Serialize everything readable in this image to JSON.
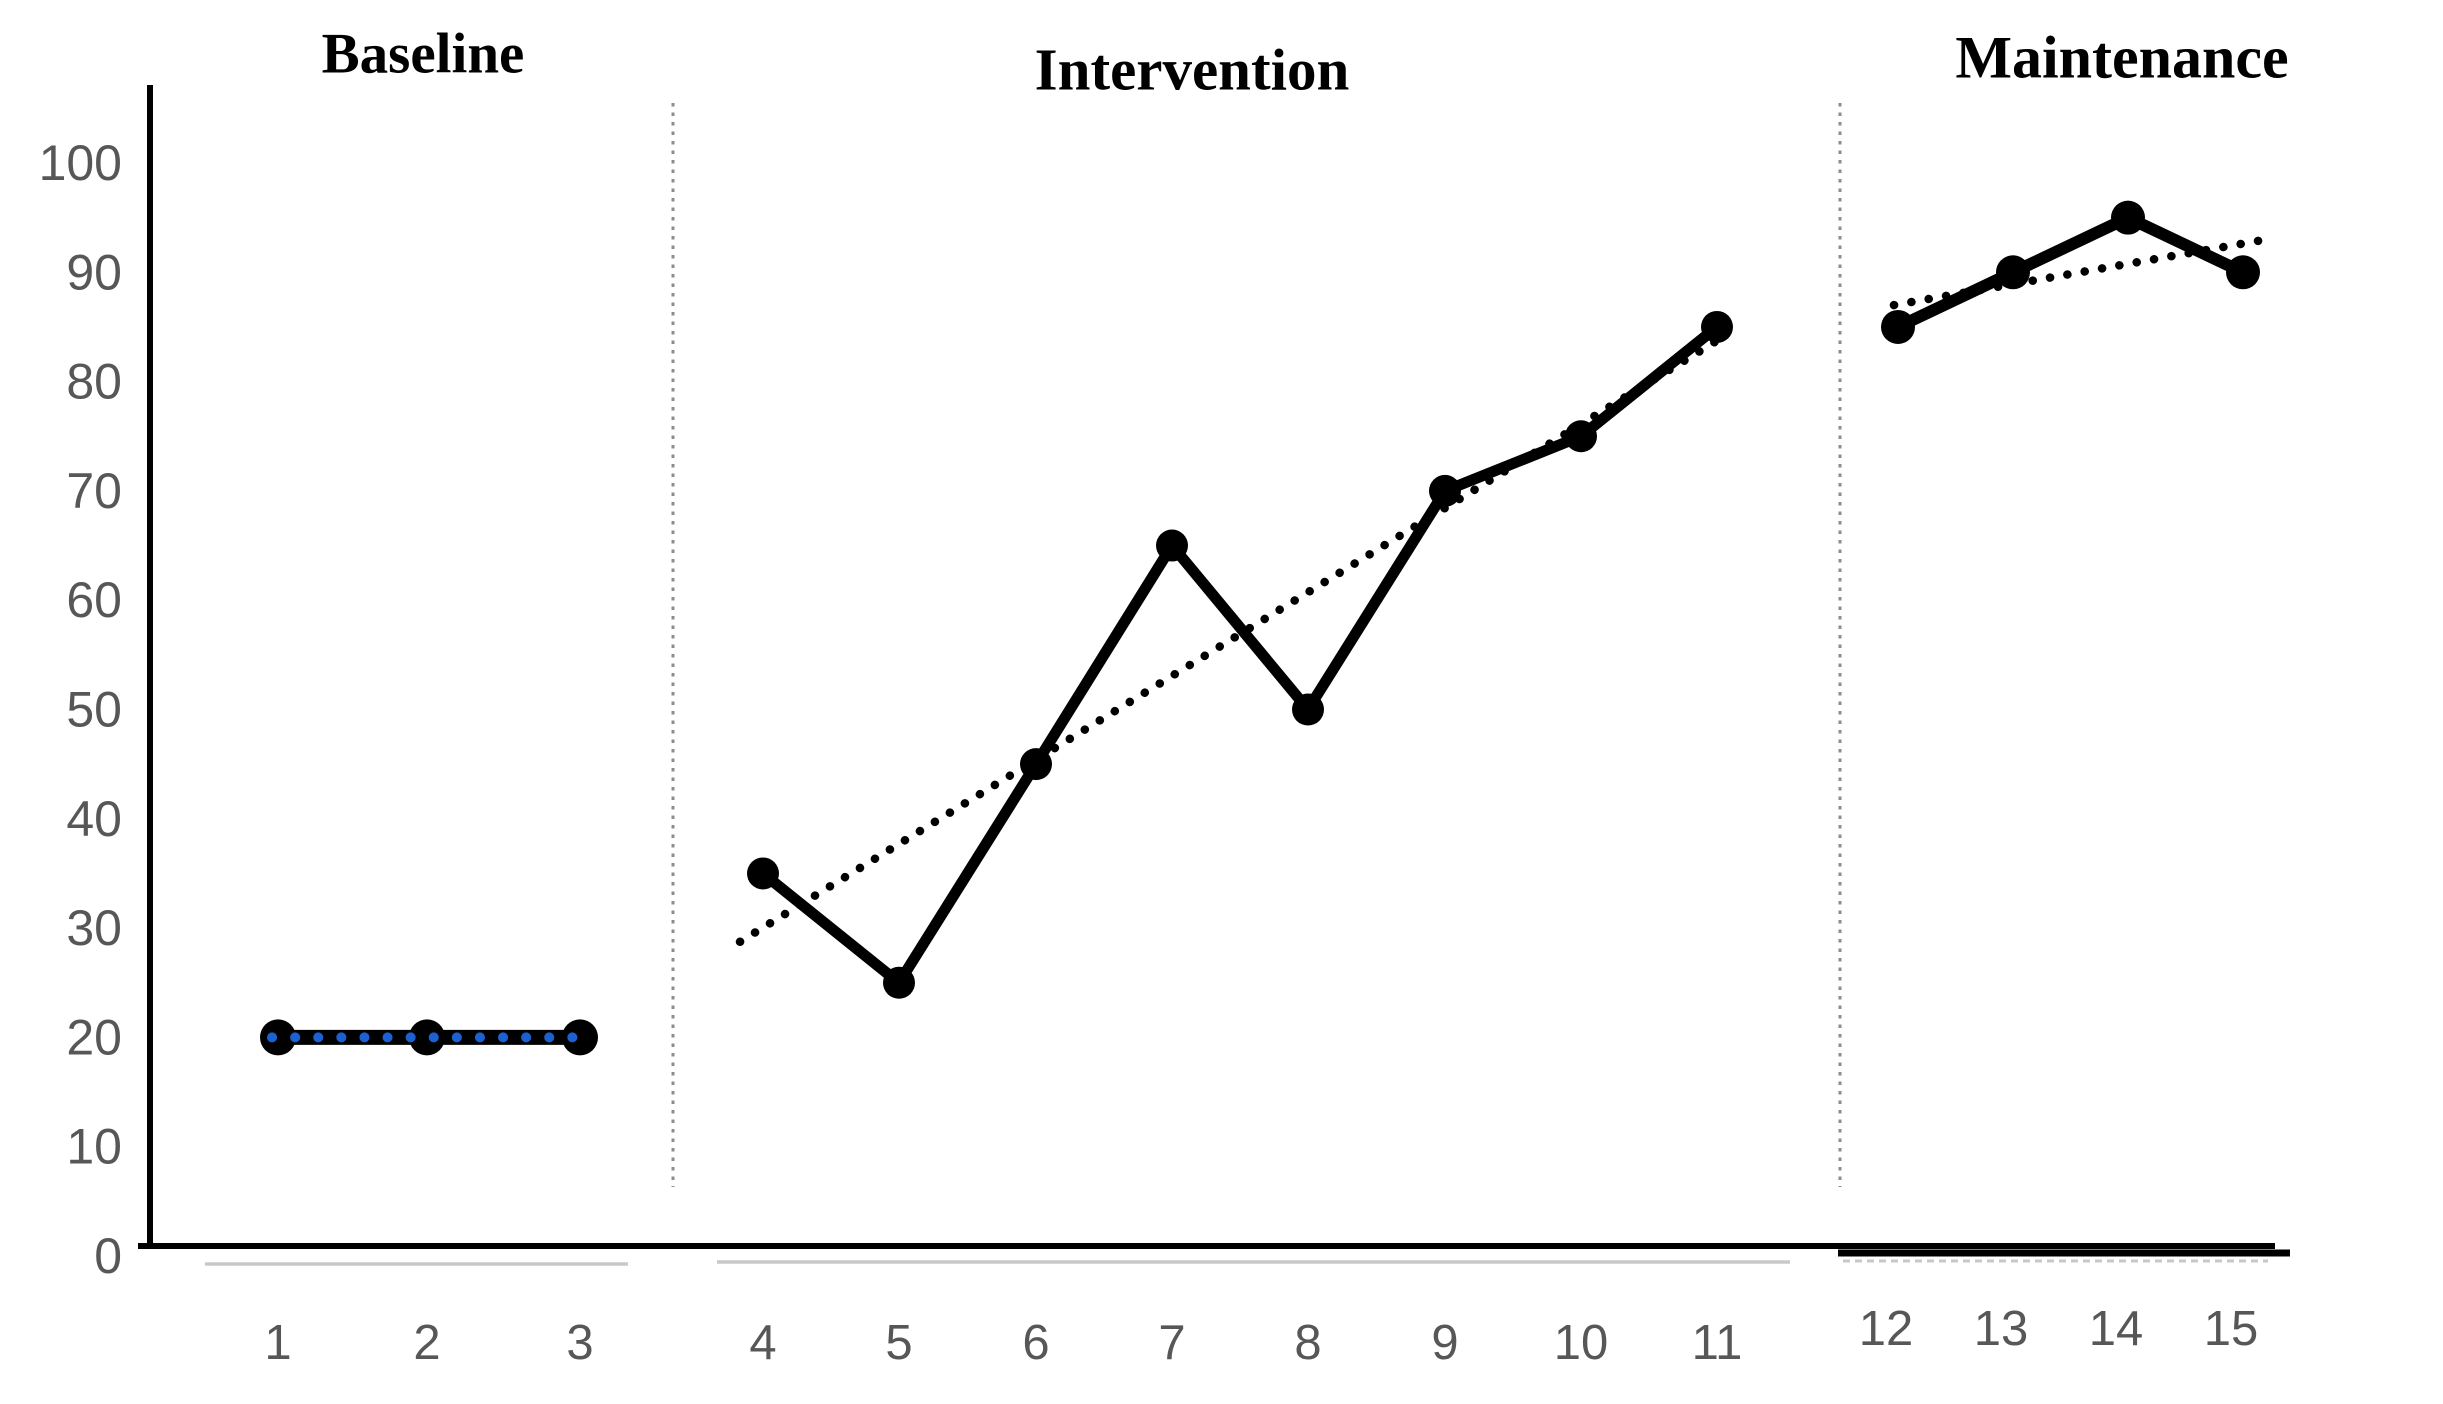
{
  "chart_data": {
    "type": "line",
    "description": "Single-case design phase line chart with solid data series, dotted trend lines, and dotted vertical phase-change separators",
    "y_axis": {
      "range": [
        0,
        100
      ],
      "tick_step": 10,
      "tick_labels": [
        "100",
        "90",
        "80",
        "70",
        "60",
        "50",
        "40",
        "30",
        "20",
        "10",
        "0"
      ],
      "tick_values": [
        100,
        90,
        80,
        70,
        60,
        50,
        40,
        30,
        20,
        10,
        0
      ],
      "grid": "off"
    },
    "x_axis": {
      "session_labels": [
        "1",
        "2",
        "3",
        "4",
        "5",
        "6",
        "7",
        "8",
        "9",
        "10",
        "11",
        "12",
        "13",
        "14",
        "15"
      ],
      "session_values": [
        1,
        2,
        3,
        4,
        5,
        6,
        7,
        8,
        9,
        10,
        11,
        12,
        13,
        14,
        15
      ]
    },
    "phases": [
      {
        "label": "Baseline",
        "sessions": [
          1,
          2,
          3
        ],
        "values": [
          20,
          20,
          20
        ],
        "trend": {
          "start_value": 20,
          "end_value": 20,
          "style": "dotted",
          "color": "#1b61d1",
          "over_line": true
        }
      },
      {
        "label": "Intervention",
        "sessions": [
          4,
          5,
          6,
          7,
          8,
          9,
          10,
          11
        ],
        "values": [
          35,
          25,
          45,
          65,
          50,
          70,
          75,
          85
        ],
        "trend": {
          "start_value": 28.75,
          "end_value": 83.75,
          "style": "dotted",
          "color": "#000000",
          "over_line": false
        }
      },
      {
        "label": "Maintenance",
        "sessions": [
          12,
          13,
          14,
          15
        ],
        "values": [
          85,
          90,
          95,
          90
        ],
        "trend": {
          "start_value": 87,
          "end_value": 93,
          "style": "dotted",
          "color": "#000000",
          "over_line": false
        }
      }
    ],
    "separators": [
      {
        "name": "baseline-intervention-separator",
        "after_session": 3
      },
      {
        "name": "intervention-maintenance-separator",
        "after_session": 11
      }
    ],
    "legend": {
      "visible": false
    },
    "colors": {
      "series_line": "#000000",
      "marker": "#000000",
      "axis_line": "#000000",
      "tick_label_text": "#575757",
      "separator_dots": "#8c8c8c",
      "baseline_trend_blue": "#1b61d1",
      "trend_black": "#000000",
      "axis_shadow_gray": "#c8c8c8"
    }
  }
}
